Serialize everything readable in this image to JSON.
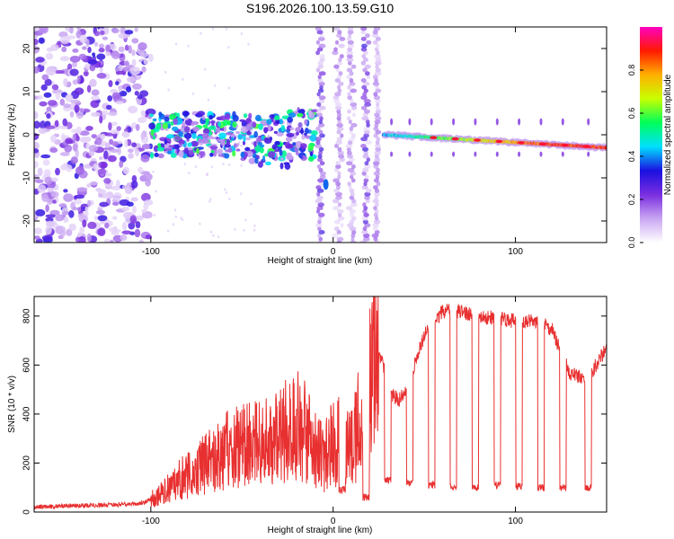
{
  "title": "S196.2026.100.13.59.G10",
  "chart_data": [
    {
      "type": "heatmap",
      "name": "spectrogram",
      "xlabel": "Height of straight line (km)",
      "ylabel": "Frequency (Hz)",
      "xlim": [
        -164,
        150
      ],
      "ylim": [
        -25,
        25
      ],
      "xticks": [
        -100,
        0,
        100
      ],
      "yticks": [
        -20,
        -10,
        0,
        10,
        20
      ],
      "colorbar": {
        "label": "Normalized spectral amplitude",
        "range": [
          0,
          1
        ],
        "ticks": [
          0.0,
          0.2,
          0.4,
          0.6,
          0.8
        ],
        "tick_labels": [
          "0.0",
          "0.2",
          "0.4",
          "0.6",
          "0.8"
        ],
        "colormap": [
          "#ffffff",
          "#c9a6f2",
          "#7a2ee0",
          "#1a10e0",
          "#00e0ff",
          "#00ff5a",
          "#c8ff00",
          "#ffb000",
          "#ff1a00",
          "#ff00c0"
        ]
      },
      "features": {
        "noise_region_x": [
          -164,
          -100
        ],
        "scattered_band_x": [
          -100,
          -10
        ],
        "gap_region_x": [
          -10,
          28
        ],
        "carrier_x": [
          28,
          150
        ],
        "carrier_frequency_start_hz": 0.0,
        "carrier_frequency_end_hz": -3.0,
        "isolated_blob": {
          "x": -4,
          "y": -11.5
        }
      }
    },
    {
      "type": "line",
      "name": "snr",
      "xlabel": "Height of straight line (km)",
      "ylabel": "SNR (10 * v/v)",
      "xlim": [
        -164,
        150
      ],
      "ylim": [
        0,
        880
      ],
      "xticks": [
        -100,
        0,
        100
      ],
      "yticks": [
        0,
        200,
        400,
        600,
        800
      ],
      "series_color": "#e83030",
      "series": [
        {
          "name": "SNR",
          "x": [
            -164,
            -150,
            -130,
            -115,
            -105,
            -95,
            -85,
            -75,
            -65,
            -55,
            -45,
            -35,
            -25,
            -20,
            -15,
            -10,
            -5,
            0,
            5,
            10,
            15,
            20,
            22,
            25,
            28,
            32,
            36,
            40,
            50,
            60,
            70,
            80,
            90,
            100,
            110,
            120,
            125,
            130,
            140,
            150
          ],
          "values": [
            20,
            25,
            28,
            30,
            35,
            70,
            130,
            170,
            230,
            260,
            280,
            300,
            330,
            370,
            320,
            250,
            220,
            280,
            300,
            260,
            400,
            560,
            670,
            640,
            590,
            480,
            460,
            500,
            720,
            820,
            820,
            800,
            790,
            780,
            780,
            750,
            650,
            560,
            550,
            670
          ]
        }
      ],
      "dropouts": [
        {
          "x": 5,
          "low": 90
        },
        {
          "x": 18,
          "low": 60
        },
        {
          "x": 30,
          "low": 130
        },
        {
          "x": 42,
          "low": 120
        },
        {
          "x": 54,
          "low": 110
        },
        {
          "x": 66,
          "low": 100
        },
        {
          "x": 78,
          "low": 100
        },
        {
          "x": 90,
          "low": 110
        },
        {
          "x": 102,
          "low": 105
        },
        {
          "x": 114,
          "low": 100
        },
        {
          "x": 126,
          "low": 100
        },
        {
          "x": 140,
          "low": 100
        }
      ]
    }
  ]
}
